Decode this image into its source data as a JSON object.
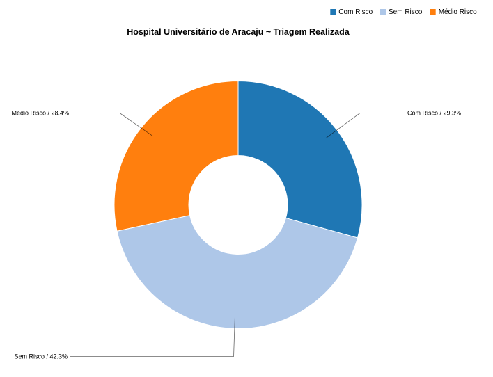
{
  "chart_data": {
    "type": "pie",
    "donut": true,
    "title": "Hospital Universitário de Aracaju ~ Triagem Realizada",
    "legend_position": "top-right",
    "slices": [
      {
        "name": "Com Risco",
        "value": 29.3,
        "label": "Com Risco / 29.3%",
        "color": "#1f77b4"
      },
      {
        "name": "Sem Risco",
        "value": 42.3,
        "label": "Sem Risco / 42.3%",
        "color": "#aec7e8"
      },
      {
        "name": "Médio Risco",
        "value": 28.4,
        "label": "Médio Risco / 28.4%",
        "color": "#ff7f0e"
      }
    ]
  }
}
